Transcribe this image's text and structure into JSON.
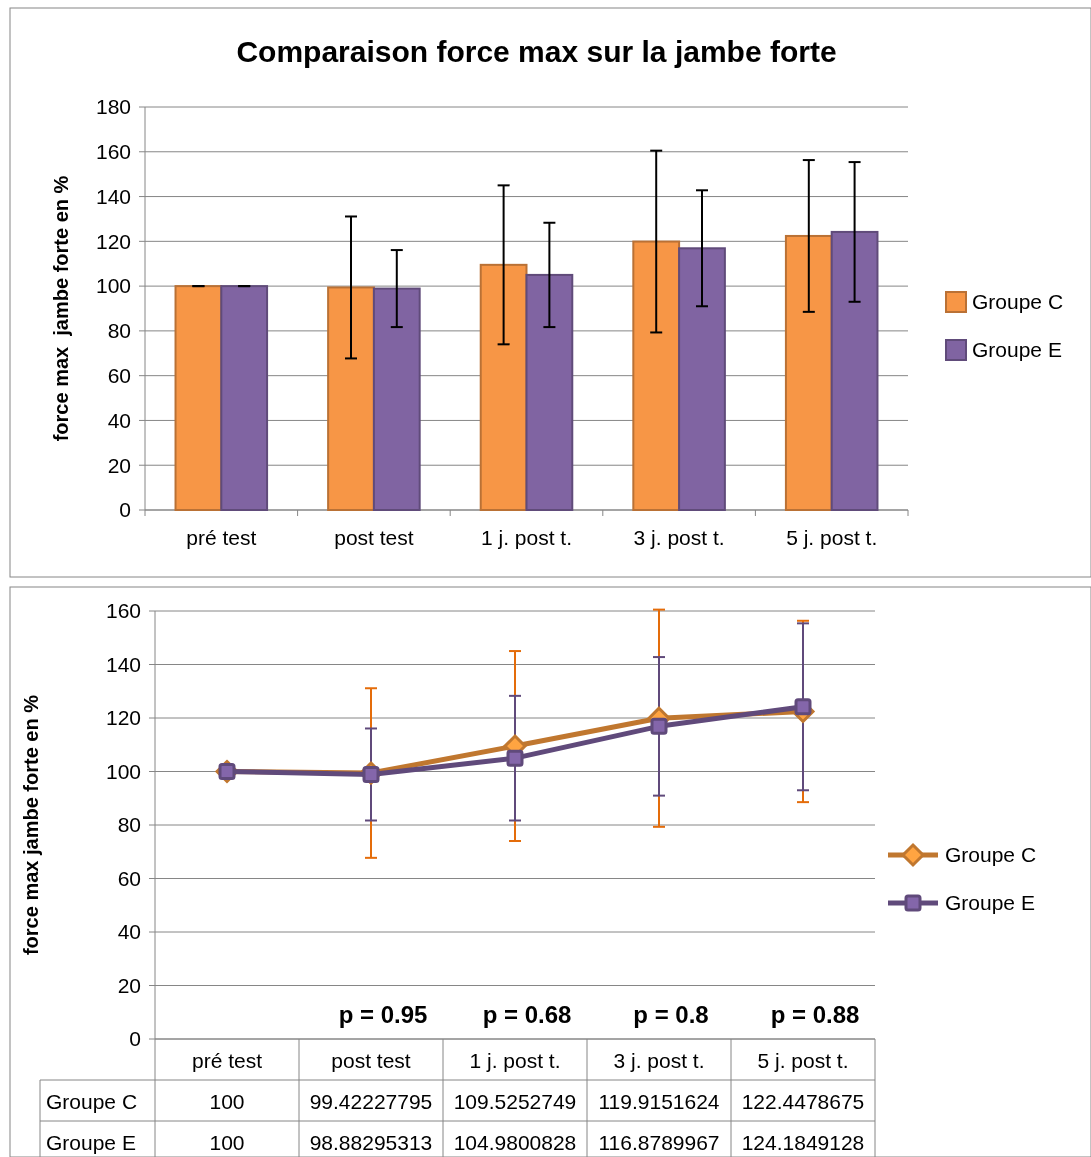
{
  "chart_data": [
    {
      "type": "bar",
      "title": "Comparaison force max sur la jambe forte",
      "ylabel": "force max  jambe forte en %",
      "categories": [
        "pré test",
        "post test",
        "1 j. post t.",
        "3 j. post t.",
        "5 j. post t."
      ],
      "series": [
        {
          "name": "Groupe C",
          "color": "#f79646",
          "values": [
            100,
            99.4,
            109.5,
            119.9,
            122.4
          ],
          "errors": [
            0,
            31.7,
            35.5,
            40.6,
            33.9
          ]
        },
        {
          "name": "Groupe E",
          "color": "#8064a2",
          "values": [
            100,
            98.9,
            105,
            116.9,
            124.2
          ],
          "errors": [
            0,
            17.2,
            23.3,
            25.9,
            31.2
          ]
        }
      ],
      "ylim": [
        0,
        180
      ],
      "yticks": [
        0,
        20,
        40,
        60,
        80,
        100,
        120,
        140,
        160,
        180
      ],
      "grid": "y",
      "legend": "right"
    },
    {
      "type": "line",
      "ylabel": "force max jambe forte en %",
      "categories": [
        "pré test",
        "post test",
        "1 j. post t.",
        "3 j. post t.",
        "5 j. post t."
      ],
      "series": [
        {
          "name": "Groupe C",
          "color": "#c0772f",
          "marker": "diamond",
          "values": [
            100,
            99.42227795,
            109.5252749,
            119.9151624,
            122.4478675
          ],
          "errors": [
            null,
            31.7,
            35.5,
            40.6,
            33.9
          ]
        },
        {
          "name": "Groupe E",
          "color": "#604a7b",
          "marker": "square",
          "values": [
            100,
            98.88295313,
            104.9800828,
            116.8789967,
            124.1849128
          ],
          "errors": [
            null,
            17.2,
            23.3,
            25.9,
            31.2
          ]
        }
      ],
      "ylim": [
        0,
        160
      ],
      "yticks": [
        0,
        20,
        40,
        60,
        80,
        100,
        120,
        140,
        160
      ],
      "grid": "y",
      "legend": "right",
      "data_labels": true,
      "annotations": [
        "p = 0.95",
        "p = 0.68",
        "p = 0.8",
        "p = 0.88"
      ]
    }
  ]
}
